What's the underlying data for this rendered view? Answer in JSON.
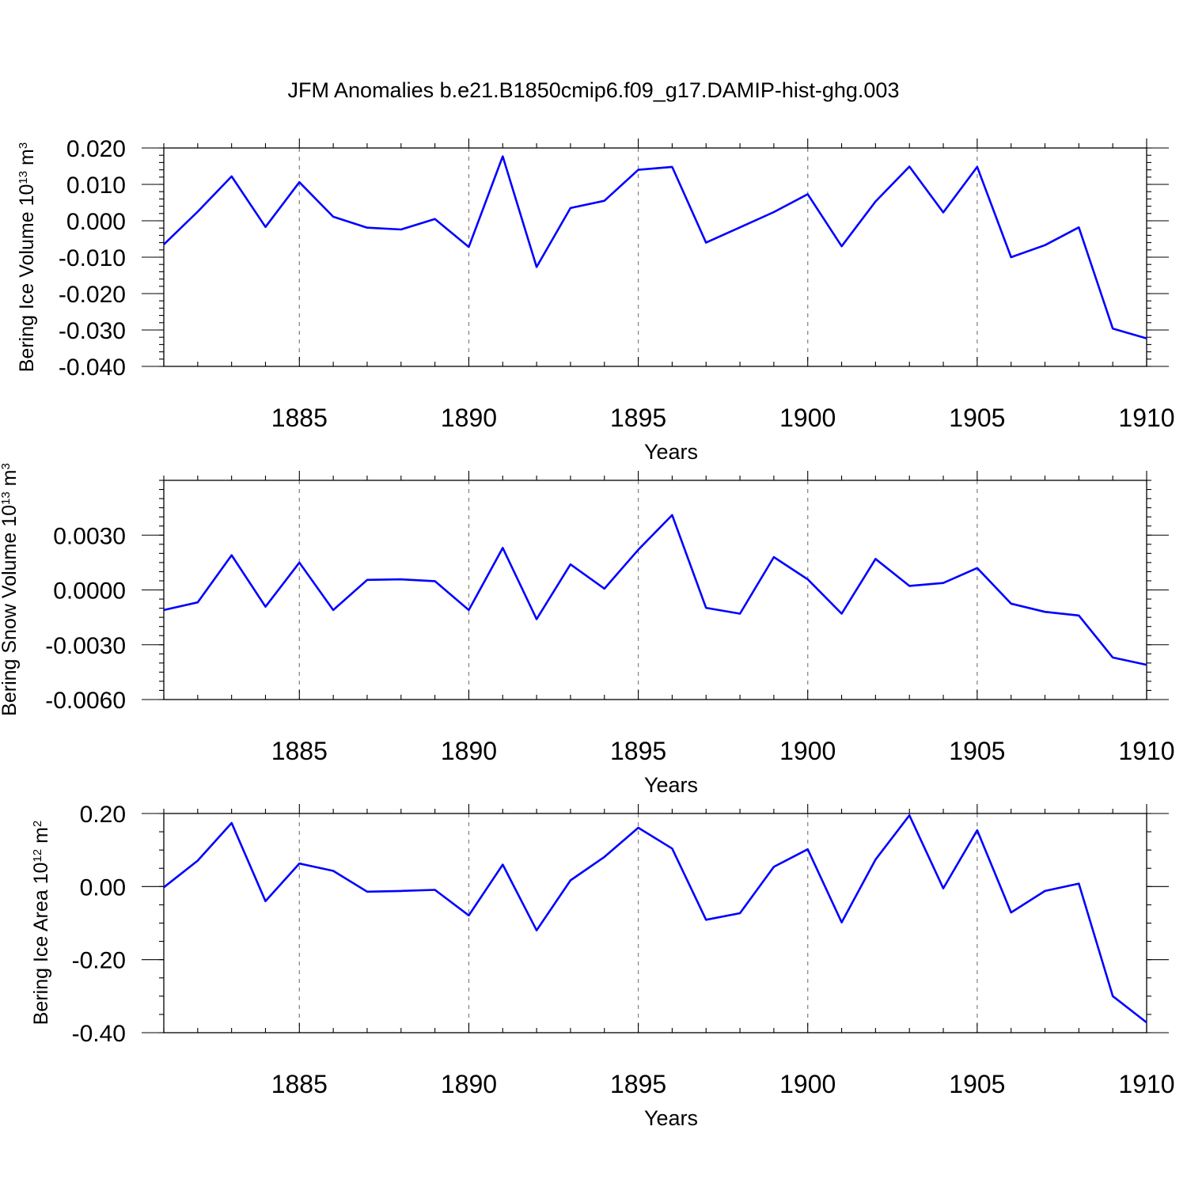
{
  "title": "JFM Anomalies b.e21.B1850cmip6.f09_g17.DAMIP-hist-ghg.003",
  "colors": {
    "line": "#0000ff",
    "frame": "#000000",
    "grid": "#888888"
  },
  "chart_data": [
    {
      "type": "line",
      "ylabel": "Bering Ice Volume 10",
      "ylabel_exp": "13",
      "ylabel_unit": " m",
      "ylabel_unit_exp": "3",
      "xlabel": "Years",
      "xlim": [
        1881,
        1910
      ],
      "ylim": [
        -0.04,
        0.02
      ],
      "grid": "vertical dashed lines at major x ticks",
      "x_ticks": [
        1885,
        1890,
        1895,
        1900,
        1905,
        1910
      ],
      "x_tick_labels": [
        "1885",
        "1890",
        "1895",
        "1900",
        "1905",
        "1910"
      ],
      "y_ticks": [
        0.02,
        0.01,
        0.0,
        -0.01,
        -0.02,
        -0.03,
        -0.04
      ],
      "y_tick_labels": [
        "0.020",
        "0.010",
        "0.000",
        "-0.010",
        "-0.020",
        "-0.030",
        "-0.040"
      ],
      "y_minor_step": 0.002,
      "series": [
        {
          "name": "Bering Ice Volume",
          "x": [
            1881,
            1882,
            1883,
            1884,
            1885,
            1886,
            1887,
            1888,
            1889,
            1890,
            1891,
            1892,
            1893,
            1894,
            1895,
            1896,
            1897,
            1898,
            1899,
            1900,
            1901,
            1902,
            1903,
            1904,
            1905,
            1906,
            1907,
            1908,
            1909,
            1910
          ],
          "values": [
            -0.0065,
            0.0025,
            0.0122,
            -0.0017,
            0.0106,
            0.0011,
            -0.0019,
            -0.0024,
            0.0005,
            -0.0072,
            0.0177,
            -0.0127,
            0.0035,
            0.0055,
            0.014,
            0.0148,
            -0.006,
            -0.0018,
            0.0024,
            0.0073,
            -0.007,
            0.0053,
            0.0149,
            0.0023,
            0.0148,
            -0.01,
            -0.0067,
            -0.0018,
            -0.0296,
            -0.0323
          ]
        }
      ]
    },
    {
      "type": "line",
      "ylabel": "Bering Snow Volume 10",
      "ylabel_exp": "13",
      "ylabel_unit": " m",
      "ylabel_unit_exp": "3",
      "xlabel": "Years",
      "xlim": [
        1881,
        1910
      ],
      "ylim": [
        -0.006,
        0.006
      ],
      "grid": "vertical dashed lines at major x ticks",
      "x_ticks": [
        1885,
        1890,
        1895,
        1900,
        1905,
        1910
      ],
      "x_tick_labels": [
        "1885",
        "1890",
        "1895",
        "1900",
        "1905",
        "1910"
      ],
      "y_ticks": [
        0.003,
        0.0,
        -0.003,
        -0.006
      ],
      "y_tick_labels": [
        "0.0030",
        "0.0000",
        "-0.0030",
        "-0.0060"
      ],
      "y_minor_step": 0.0005,
      "series": [
        {
          "name": "Bering Snow Volume",
          "x": [
            1881,
            1882,
            1883,
            1884,
            1885,
            1886,
            1887,
            1888,
            1889,
            1890,
            1891,
            1892,
            1893,
            1894,
            1895,
            1896,
            1897,
            1898,
            1899,
            1900,
            1901,
            1902,
            1903,
            1904,
            1905,
            1906,
            1907,
            1908,
            1909,
            1910
          ],
          "values": [
            -0.0011,
            -0.00068,
            0.0019,
            -0.00092,
            0.0015,
            -0.0011,
            0.00055,
            0.00058,
            0.00048,
            -0.0011,
            0.0023,
            -0.0016,
            0.0014,
            7e-05,
            0.0022,
            0.0041,
            -0.00098,
            -0.0013,
            0.0018,
            0.00058,
            -0.0013,
            0.0017,
            0.00022,
            0.00038,
            0.0012,
            -0.00075,
            -0.0012,
            -0.0014,
            -0.0037,
            -0.0041
          ]
        }
      ]
    },
    {
      "type": "line",
      "ylabel": "Bering Ice Area 10",
      "ylabel_exp": "12",
      "ylabel_unit": " m",
      "ylabel_unit_exp": "2",
      "xlabel": "Years",
      "xlim": [
        1881,
        1910
      ],
      "ylim": [
        -0.4,
        0.2
      ],
      "grid": "vertical dashed lines at major x ticks",
      "x_ticks": [
        1885,
        1890,
        1895,
        1900,
        1905,
        1910
      ],
      "x_tick_labels": [
        "1885",
        "1890",
        "1895",
        "1900",
        "1905",
        "1910"
      ],
      "y_ticks": [
        0.2,
        0.0,
        -0.2,
        -0.4
      ],
      "y_tick_labels": [
        "0.20",
        "0.00",
        "-0.20",
        "-0.40"
      ],
      "y_minor_step": 0.05,
      "series": [
        {
          "name": "Bering Ice Area",
          "x": [
            1881,
            1882,
            1883,
            1884,
            1885,
            1886,
            1887,
            1888,
            1889,
            1890,
            1891,
            1892,
            1893,
            1894,
            1895,
            1896,
            1897,
            1898,
            1899,
            1900,
            1901,
            1902,
            1903,
            1904,
            1905,
            1906,
            1907,
            1908,
            1909,
            1910
          ],
          "values": [
            -0.002,
            0.071,
            0.174,
            -0.04,
            0.063,
            0.043,
            -0.014,
            -0.012,
            -0.009,
            -0.079,
            0.06,
            -0.12,
            0.017,
            0.081,
            0.161,
            0.104,
            -0.091,
            -0.073,
            0.054,
            0.102,
            -0.098,
            0.074,
            0.195,
            -0.005,
            0.154,
            -0.071,
            -0.012,
            0.008,
            -0.3,
            -0.372
          ]
        }
      ]
    }
  ]
}
